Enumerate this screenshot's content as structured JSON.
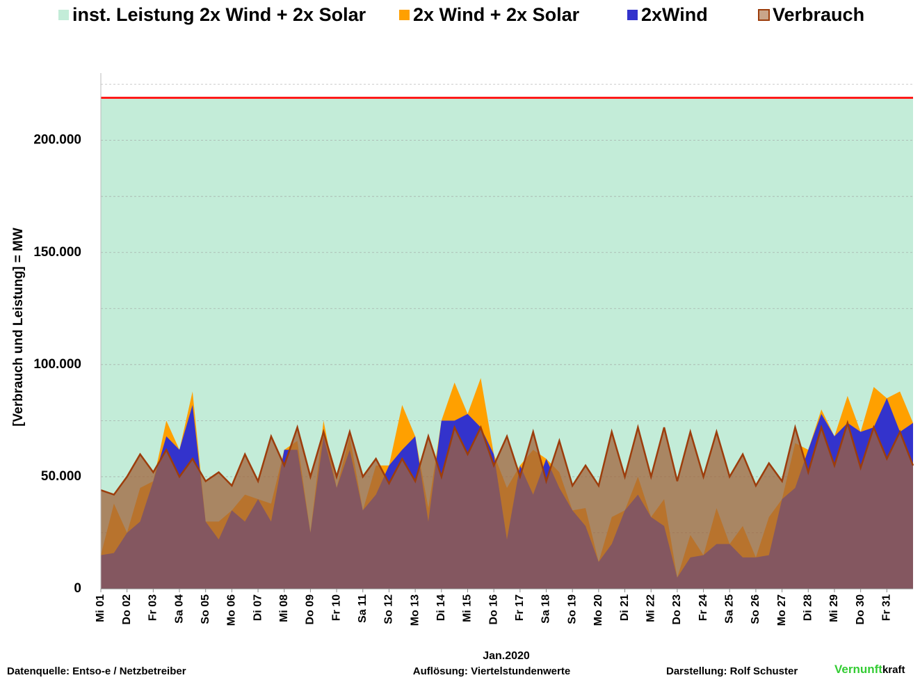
{
  "chart_data": {
    "type": "area",
    "legend": [
      "inst. Leistung 2x Wind + 2x Solar",
      "2x Wind + 2x Solar",
      "2xWind",
      "Verbrauch"
    ],
    "installed": {
      "name": "inst. Leistung 2x Wind + 2x Solar",
      "color": "#c3ecd8",
      "line_color": "#ff1a1a",
      "value": 219000
    },
    "ylabel": "[Verbrauch und Leistung] =  MW",
    "xlabel": "Jan.2020",
    "xlim": [
      0,
      31
    ],
    "ylim": [
      0,
      230000
    ],
    "yticks": [
      {
        "value": 0,
        "label": "0"
      },
      {
        "value": 50000,
        "label": "50.000"
      },
      {
        "value": 100000,
        "label": "100.000"
      },
      {
        "value": 150000,
        "label": "150.000"
      },
      {
        "value": 200000,
        "label": "200.000"
      }
    ],
    "ygrid": [
      25000,
      50000,
      75000,
      100000,
      125000,
      150000,
      175000,
      200000,
      225000
    ],
    "xticks": [
      {
        "value": 0,
        "label": "Mi 01"
      },
      {
        "value": 1,
        "label": "Do 02"
      },
      {
        "value": 2,
        "label": "Fr 03"
      },
      {
        "value": 3,
        "label": "Sa 04"
      },
      {
        "value": 4,
        "label": "So 05"
      },
      {
        "value": 5,
        "label": "Mo 06"
      },
      {
        "value": 6,
        "label": "Di 07"
      },
      {
        "value": 7,
        "label": "Mi 08"
      },
      {
        "value": 8,
        "label": "Do 09"
      },
      {
        "value": 9,
        "label": "Fr 10"
      },
      {
        "value": 10,
        "label": "Sa 11"
      },
      {
        "value": 11,
        "label": "So 12"
      },
      {
        "value": 12,
        "label": "Mo 13"
      },
      {
        "value": 13,
        "label": "Di 14"
      },
      {
        "value": 14,
        "label": "Mi 15"
      },
      {
        "value": 15,
        "label": "Do 16"
      },
      {
        "value": 16,
        "label": "Fr 17"
      },
      {
        "value": 17,
        "label": "Sa 18"
      },
      {
        "value": 18,
        "label": "So 19"
      },
      {
        "value": 19,
        "label": "Mo 20"
      },
      {
        "value": 20,
        "label": "Di 21"
      },
      {
        "value": 21,
        "label": "Mi 22"
      },
      {
        "value": 22,
        "label": "Do 23"
      },
      {
        "value": 23,
        "label": "Fr 24"
      },
      {
        "value": 24,
        "label": "Sa 25"
      },
      {
        "value": 25,
        "label": "So 26"
      },
      {
        "value": 26,
        "label": "Mo 27"
      },
      {
        "value": 27,
        "label": "Di 28"
      },
      {
        "value": 28,
        "label": "Mi 29"
      },
      {
        "value": 29,
        "label": "Do 30"
      },
      {
        "value": 30,
        "label": "Fr 31"
      }
    ],
    "x": [
      0,
      0.5,
      1,
      1.5,
      2,
      2.5,
      3,
      3.5,
      4,
      4.5,
      5,
      5.5,
      6,
      6.5,
      7,
      7.5,
      8,
      8.5,
      9,
      9.5,
      10,
      10.5,
      11,
      11.5,
      12,
      12.5,
      13,
      13.5,
      14,
      14.5,
      15,
      15.5,
      16,
      16.5,
      17,
      17.5,
      18,
      18.5,
      19,
      19.5,
      20,
      20.5,
      21,
      21.5,
      22,
      22.5,
      23,
      23.5,
      24,
      24.5,
      25,
      25.5,
      26,
      26.5,
      27,
      27.5,
      28,
      28.5,
      29,
      29.5,
      30,
      30.5,
      31
    ],
    "series": [
      {
        "name": "2x Wind + 2x Solar",
        "color": "#ffa000",
        "values": [
          15000,
          38000,
          25000,
          45000,
          48000,
          75000,
          62000,
          88000,
          30000,
          30000,
          35000,
          42000,
          40000,
          38000,
          62000,
          66000,
          25000,
          75000,
          45000,
          68000,
          35000,
          55000,
          55000,
          82000,
          68000,
          36000,
          75000,
          92000,
          78000,
          94000,
          60000,
          45000,
          55000,
          62000,
          58000,
          52000,
          35000,
          36000,
          12000,
          32000,
          35000,
          50000,
          32000,
          40000,
          5000,
          24000,
          15000,
          36000,
          20000,
          28000,
          14000,
          32000,
          40000,
          65000,
          62000,
          80000,
          68000,
          86000,
          70000,
          90000,
          85000,
          88000,
          74000
        ]
      },
      {
        "name": "2xWind",
        "color": "#3333cc",
        "values": [
          15000,
          16000,
          25000,
          30000,
          48000,
          68000,
          62000,
          82000,
          30000,
          22000,
          35000,
          30000,
          40000,
          30000,
          62000,
          62000,
          25000,
          68000,
          45000,
          62000,
          35000,
          42000,
          55000,
          62000,
          68000,
          30000,
          75000,
          75000,
          78000,
          72000,
          60000,
          22000,
          55000,
          42000,
          58000,
          45000,
          35000,
          28000,
          12000,
          20000,
          35000,
          42000,
          32000,
          28000,
          5000,
          14000,
          15000,
          20000,
          20000,
          14000,
          14000,
          15000,
          40000,
          45000,
          62000,
          78000,
          68000,
          74000,
          70000,
          72000,
          85000,
          70000,
          74000
        ]
      },
      {
        "name": "Verbrauch",
        "color": "#a0643c",
        "line_color": "#9c3d0c",
        "values": [
          44000,
          42000,
          50000,
          60000,
          52000,
          62000,
          50000,
          58000,
          48000,
          52000,
          46000,
          60000,
          48000,
          68000,
          55000,
          72000,
          50000,
          70000,
          50000,
          70000,
          50000,
          58000,
          47000,
          58000,
          48000,
          68000,
          50000,
          72000,
          60000,
          72000,
          55000,
          68000,
          50000,
          70000,
          48000,
          66000,
          46000,
          55000,
          46000,
          70000,
          50000,
          72000,
          50000,
          72000,
          48000,
          70000,
          50000,
          70000,
          50000,
          60000,
          46000,
          56000,
          48000,
          72000,
          52000,
          72000,
          55000,
          74000,
          54000,
          72000,
          58000,
          70000,
          55000
        ]
      }
    ]
  },
  "footer": {
    "source": "Datenquelle: Entso-e  / Netzbetreiber",
    "resolution": "Auflösung: Viertelstundenwerte",
    "author": "Darstellung:  Rolf Schuster",
    "logo_green": "Vernunft",
    "logo_black": "kraft"
  }
}
